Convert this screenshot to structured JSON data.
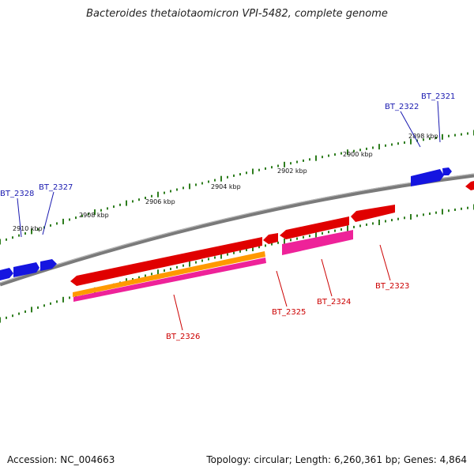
{
  "title": "Bacteroides thetaiotaomicron VPI-5482, complete genome",
  "footer": {
    "accession": "Accession: NC_004663",
    "summary": "Topology: circular; Length: 6,260,361 bp; Genes: 4,864"
  },
  "colors": {
    "backbone": "#7a7a7a",
    "tick_major": "#2e7d1e",
    "forward_gene": "#1515e0",
    "reverse_gene": "#e00000",
    "forward_label": "#1a1ab0",
    "reverse_label": "#cc0000",
    "pink_feature": "#ee2299",
    "orange_feature": "#ff9900"
  },
  "ticks": [
    {
      "label": "2898 kbp"
    },
    {
      "label": "2900 kbp"
    },
    {
      "label": "2902 kbp"
    },
    {
      "label": "2904 kbp"
    },
    {
      "label": "2906 kbp"
    },
    {
      "label": "2908 kbp"
    },
    {
      "label": "2910 kbp"
    }
  ],
  "genes": [
    {
      "name": "BT_2321",
      "strand": "forward"
    },
    {
      "name": "BT_2322",
      "strand": "forward"
    },
    {
      "name": "BT_2327",
      "strand": "forward"
    },
    {
      "name": "BT_2328",
      "strand": "forward"
    },
    {
      "name": "BT_2323",
      "strand": "reverse"
    },
    {
      "name": "BT_2324",
      "strand": "reverse"
    },
    {
      "name": "BT_2325",
      "strand": "reverse"
    },
    {
      "name": "BT_2326",
      "strand": "reverse"
    }
  ]
}
